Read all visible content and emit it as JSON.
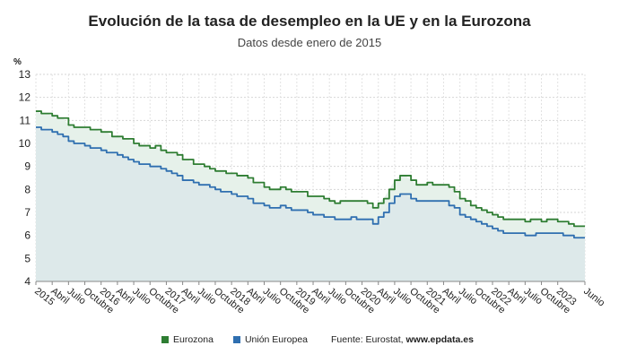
{
  "header": {
    "title": "Evolución de la tasa de desempleo en la UE y en la Eurozona",
    "subtitle": "Datos desde enero de 2015",
    "unit": "%"
  },
  "legend": {
    "items": [
      {
        "label": "Eurozona",
        "color": "#2e7d32"
      },
      {
        "label": "Unión Europea",
        "color": "#2f6fb0"
      }
    ],
    "source_prefix": "Fuente: Eurostat, ",
    "source_site": "www.epdata.es"
  },
  "chart_data": {
    "type": "area",
    "title": "Evolución de la tasa de desempleo en la UE y en la Eurozona",
    "subtitle": "Datos desde enero de 2015",
    "ylabel": "%",
    "ylim": [
      4,
      13
    ],
    "yticks": [
      4,
      5,
      6,
      7,
      8,
      9,
      10,
      11,
      12,
      13
    ],
    "grid": true,
    "legend_position": "bottom",
    "x_start": "2015-01",
    "x_end": "2023-06",
    "xtick_labels": [
      {
        "label": "2015",
        "year": 2015,
        "month": 1
      },
      {
        "label": "Abril",
        "year": 2015,
        "month": 4
      },
      {
        "label": "Julio",
        "year": 2015,
        "month": 7
      },
      {
        "label": "Octubre",
        "year": 2015,
        "month": 10
      },
      {
        "label": "2016",
        "year": 2016,
        "month": 1
      },
      {
        "label": "Abril",
        "year": 2016,
        "month": 4
      },
      {
        "label": "Julio",
        "year": 2016,
        "month": 7
      },
      {
        "label": "Octubre",
        "year": 2016,
        "month": 10
      },
      {
        "label": "2017",
        "year": 2017,
        "month": 1
      },
      {
        "label": "Abril",
        "year": 2017,
        "month": 4
      },
      {
        "label": "Julio",
        "year": 2017,
        "month": 7
      },
      {
        "label": "Octubre",
        "year": 2017,
        "month": 10
      },
      {
        "label": "2018",
        "year": 2018,
        "month": 1
      },
      {
        "label": "Abril",
        "year": 2018,
        "month": 4
      },
      {
        "label": "Julio",
        "year": 2018,
        "month": 7
      },
      {
        "label": "Octubre",
        "year": 2018,
        "month": 10
      },
      {
        "label": "2019",
        "year": 2019,
        "month": 1
      },
      {
        "label": "Abril",
        "year": 2019,
        "month": 4
      },
      {
        "label": "Julio",
        "year": 2019,
        "month": 7
      },
      {
        "label": "Octubre",
        "year": 2019,
        "month": 10
      },
      {
        "label": "2020",
        "year": 2020,
        "month": 1
      },
      {
        "label": "Abril",
        "year": 2020,
        "month": 4
      },
      {
        "label": "Julio",
        "year": 2020,
        "month": 7
      },
      {
        "label": "Octubre",
        "year": 2020,
        "month": 10
      },
      {
        "label": "2021",
        "year": 2021,
        "month": 1
      },
      {
        "label": "Abril",
        "year": 2021,
        "month": 4
      },
      {
        "label": "Julio",
        "year": 2021,
        "month": 7
      },
      {
        "label": "Octubre",
        "year": 2021,
        "month": 10
      },
      {
        "label": "2022",
        "year": 2022,
        "month": 1
      },
      {
        "label": "Abril",
        "year": 2022,
        "month": 4
      },
      {
        "label": "Julio",
        "year": 2022,
        "month": 7
      },
      {
        "label": "Octubre",
        "year": 2022,
        "month": 10
      },
      {
        "label": "2023",
        "year": 2023,
        "month": 1
      },
      {
        "label": "Junio",
        "year": 2023,
        "month": 6
      }
    ],
    "series": [
      {
        "name": "Eurozona",
        "color": "#2e7d32",
        "fill": "#e6f1ea",
        "values": [
          11.4,
          11.3,
          11.3,
          11.2,
          11.1,
          11.1,
          10.8,
          10.7,
          10.7,
          10.7,
          10.6,
          10.6,
          10.5,
          10.5,
          10.3,
          10.3,
          10.2,
          10.2,
          10.0,
          9.9,
          9.9,
          9.8,
          9.9,
          9.7,
          9.6,
          9.6,
          9.5,
          9.3,
          9.3,
          9.1,
          9.1,
          9.0,
          8.9,
          8.8,
          8.8,
          8.7,
          8.7,
          8.6,
          8.6,
          8.5,
          8.3,
          8.3,
          8.1,
          8.0,
          8.0,
          8.1,
          8.0,
          7.9,
          7.9,
          7.9,
          7.7,
          7.7,
          7.7,
          7.6,
          7.5,
          7.4,
          7.5,
          7.5,
          7.5,
          7.5,
          7.5,
          7.4,
          7.2,
          7.4,
          7.6,
          8.0,
          8.4,
          8.6,
          8.6,
          8.4,
          8.2,
          8.2,
          8.3,
          8.2,
          8.2,
          8.2,
          8.1,
          7.9,
          7.6,
          7.5,
          7.3,
          7.2,
          7.1,
          7.0,
          6.9,
          6.8,
          6.7,
          6.7,
          6.7,
          6.7,
          6.6,
          6.7,
          6.7,
          6.6,
          6.7,
          6.7,
          6.6,
          6.6,
          6.5,
          6.4,
          6.4,
          6.4
        ]
      },
      {
        "name": "Unión Europea",
        "color": "#2f6fb0",
        "fill": "#dde9ea",
        "values": [
          10.7,
          10.6,
          10.6,
          10.5,
          10.4,
          10.3,
          10.1,
          10.0,
          10.0,
          9.9,
          9.8,
          9.8,
          9.7,
          9.6,
          9.6,
          9.5,
          9.4,
          9.3,
          9.2,
          9.1,
          9.1,
          9.0,
          9.0,
          8.9,
          8.8,
          8.7,
          8.6,
          8.4,
          8.4,
          8.3,
          8.2,
          8.2,
          8.1,
          8.0,
          7.9,
          7.9,
          7.8,
          7.7,
          7.7,
          7.6,
          7.4,
          7.4,
          7.3,
          7.2,
          7.2,
          7.3,
          7.2,
          7.1,
          7.1,
          7.1,
          7.0,
          6.9,
          6.9,
          6.8,
          6.8,
          6.7,
          6.7,
          6.7,
          6.8,
          6.7,
          6.7,
          6.7,
          6.5,
          6.8,
          7.0,
          7.4,
          7.7,
          7.8,
          7.8,
          7.6,
          7.5,
          7.5,
          7.5,
          7.5,
          7.5,
          7.5,
          7.3,
          7.2,
          6.9,
          6.8,
          6.7,
          6.6,
          6.5,
          6.4,
          6.3,
          6.2,
          6.1,
          6.1,
          6.1,
          6.1,
          6.0,
          6.0,
          6.1,
          6.1,
          6.1,
          6.1,
          6.1,
          6.0,
          6.0,
          5.9,
          5.9,
          5.9
        ]
      }
    ]
  }
}
